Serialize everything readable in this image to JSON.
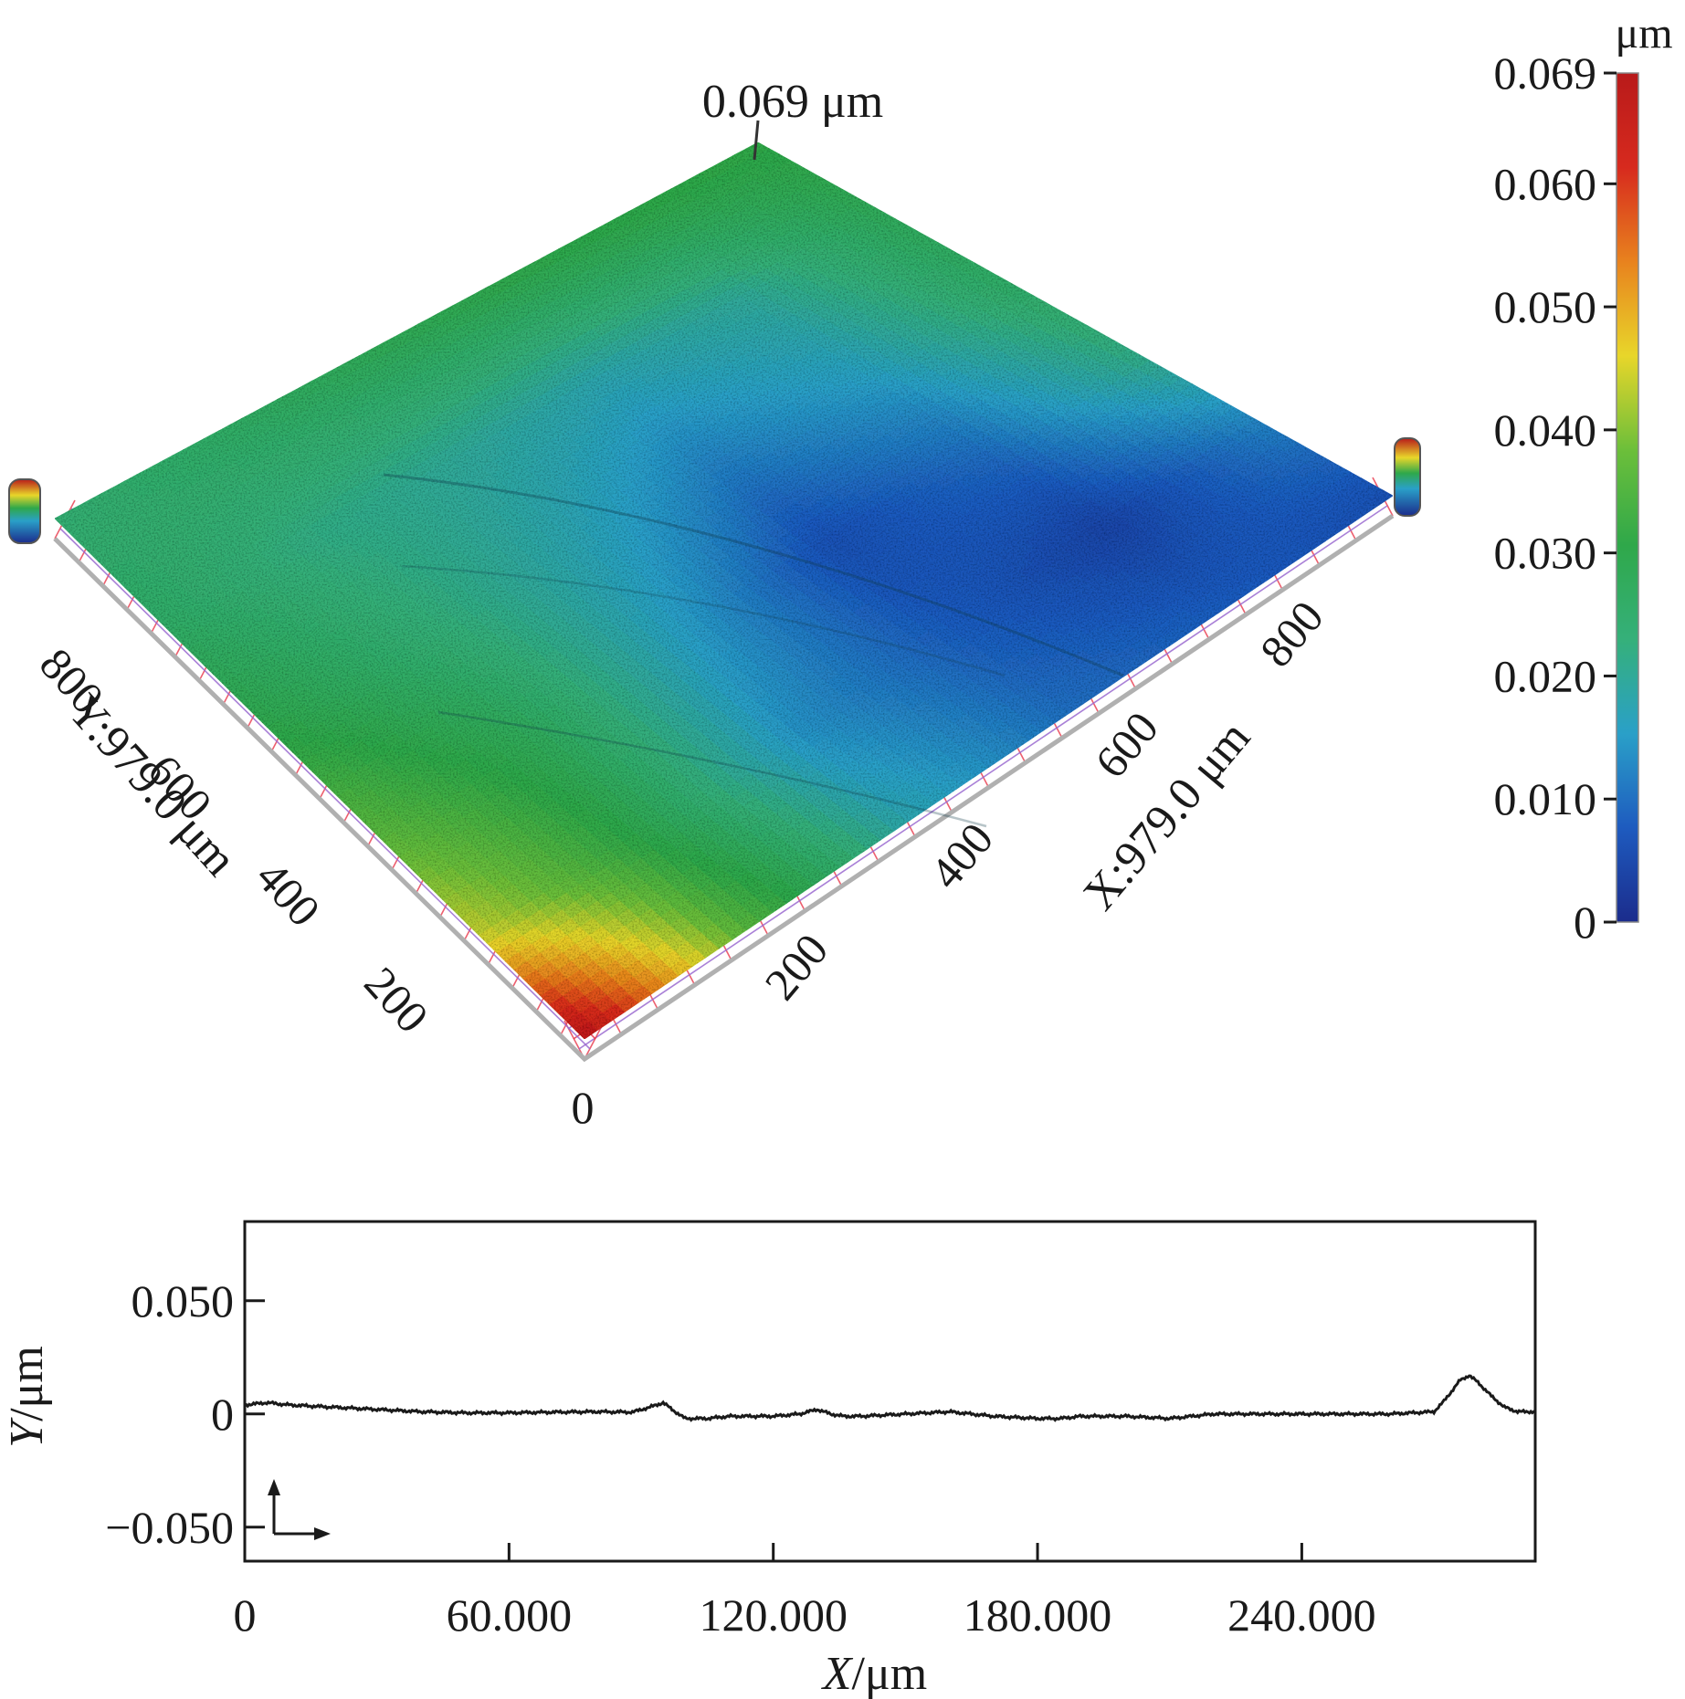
{
  "chart_data": [
    {
      "type": "heatmap",
      "subtype": "3d-surface",
      "peak_label": "0.069 μm",
      "x_axis": {
        "label": "X:979.0 μm",
        "ticks": [
          "0",
          "200",
          "400",
          "600",
          "800"
        ],
        "range": [
          0,
          979
        ]
      },
      "y_axis": {
        "label": "Y:979.0 μm",
        "ticks": [
          "200",
          "400",
          "600",
          "800"
        ],
        "range": [
          0,
          979
        ]
      },
      "colorbar": {
        "unit": "μm",
        "ticks": [
          "0.069",
          "0.060",
          "0.050",
          "0.040",
          "0.030",
          "0.020",
          "0.010",
          "0"
        ],
        "range": [
          0,
          0.069
        ],
        "colors": [
          "#1b2c8c",
          "#1e5bbf",
          "#2aa0c8",
          "#35b07a",
          "#2fa84a",
          "#6cbf3a",
          "#e8d62a",
          "#e8821e",
          "#d72a1e",
          "#b81a1a"
        ]
      },
      "surface": {
        "trend": "green along far edges, blue trough through middle, red-yellow peak at origin corner",
        "grid": [
          [
            0.024,
            0.026,
            0.028,
            0.03,
            0.031,
            0.031
          ],
          [
            0.026,
            0.022,
            0.02,
            0.018,
            0.02,
            0.028
          ],
          [
            0.03,
            0.024,
            0.018,
            0.012,
            0.016,
            0.026
          ],
          [
            0.036,
            0.028,
            0.016,
            0.006,
            0.01,
            0.022
          ],
          [
            0.044,
            0.03,
            0.014,
            0.008,
            0.004,
            0.012
          ],
          [
            0.069,
            0.036,
            0.018,
            0.01,
            0.008,
            0.006
          ]
        ]
      }
    },
    {
      "type": "line",
      "xlabel_italic": "X",
      "xlabel_rest": "/μm",
      "ylabel_italic": "Y",
      "ylabel_rest": "/μm",
      "xlim": [
        0,
        293
      ],
      "ylim": [
        -0.065,
        0.085
      ],
      "xticks": [
        0,
        60,
        120,
        180,
        240
      ],
      "xtick_labels": [
        "0",
        "60.000",
        "120.000",
        "180.000",
        "240.000"
      ],
      "yticks": [
        0.05,
        0,
        -0.05
      ],
      "ytick_labels": [
        "0.050",
        "0",
        "−0.050"
      ],
      "series": [
        {
          "x": [
            0,
            5,
            10,
            20,
            30,
            40,
            50,
            60,
            70,
            80,
            88,
            92,
            95,
            97,
            100,
            105,
            110,
            120,
            126,
            130,
            133,
            136,
            140,
            150,
            160,
            165,
            170,
            180,
            185,
            190,
            200,
            210,
            220,
            230,
            240,
            250,
            260,
            270,
            272,
            274,
            276,
            278,
            280,
            283,
            286,
            289,
            293
          ],
          "y": [
            0.004,
            0.005,
            0.004,
            0.003,
            0.002,
            0.001,
            0.0005,
            0.0005,
            0.0008,
            0.001,
            0.0008,
            0.003,
            0.005,
            0.002,
            -0.002,
            -0.002,
            -0.001,
            -0.001,
            0.0,
            0.002,
            0.0,
            -0.001,
            -0.001,
            0.0,
            0.001,
            0.0,
            -0.001,
            -0.002,
            -0.002,
            -0.001,
            -0.001,
            -0.002,
            0.0,
            0.0,
            0.0,
            0.0,
            0.0,
            0.001,
            0.005,
            0.01,
            0.015,
            0.017,
            0.014,
            0.008,
            0.003,
            0.001,
            0.001
          ]
        }
      ]
    }
  ]
}
